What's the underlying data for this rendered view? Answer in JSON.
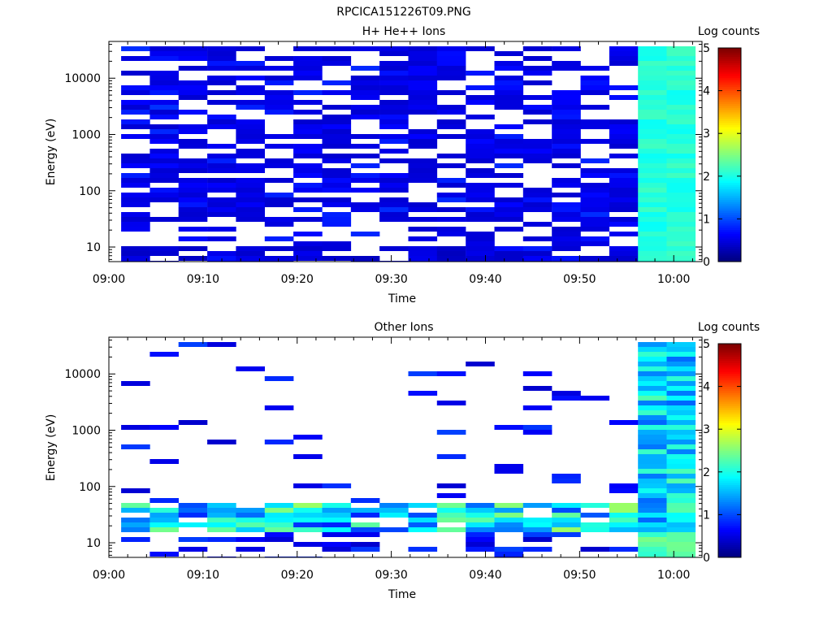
{
  "figure_title": "RPCICA151226T09.PNG",
  "chart_data": [
    {
      "type": "heatmap",
      "title": "H+ He++ Ions",
      "xlabel": "Time",
      "ylabel": "Energy (eV)",
      "x_range": [
        "09:00",
        "10:03"
      ],
      "x_ticks": [
        "09:00",
        "09:10",
        "09:20",
        "09:30",
        "09:40",
        "09:50",
        "10:00"
      ],
      "y_scale": "log",
      "y_range": [
        5.5,
        45000
      ],
      "y_ticks": [
        10,
        100,
        1000,
        10000
      ],
      "colorbar": {
        "label": "Log counts",
        "range": [
          0,
          5
        ],
        "ticks": [
          0,
          1,
          2,
          3,
          4,
          5
        ],
        "colormap": "jet"
      },
      "background_color": "#ffffff",
      "description_of_values": "Log counts per time-energy bin; most bins 0.1-0.6 (dark blue), white = no counts; final columns 09:56-10:02 uniform ~1.9-2.3 across all energies"
    },
    {
      "type": "heatmap",
      "title": "Other Ions",
      "xlabel": "Time",
      "ylabel": "Energy (eV)",
      "x_range": [
        "09:00",
        "10:03"
      ],
      "x_ticks": [
        "09:00",
        "09:10",
        "09:20",
        "09:30",
        "09:40",
        "09:50",
        "10:00"
      ],
      "y_scale": "log",
      "y_range": [
        5.5,
        45000
      ],
      "y_ticks": [
        10,
        100,
        1000,
        10000
      ],
      "colorbar": {
        "label": "Log counts",
        "range": [
          0,
          5
        ],
        "ticks": [
          0,
          1,
          2,
          3,
          4,
          5
        ],
        "colormap": "jet"
      },
      "background_color": "#ffffff",
      "description_of_values": "Sparse counts; band around 20-60 eV at log counts 1-2.5; final columns 09:56-10:02 log counts ~1-2.5 across all energies"
    }
  ]
}
